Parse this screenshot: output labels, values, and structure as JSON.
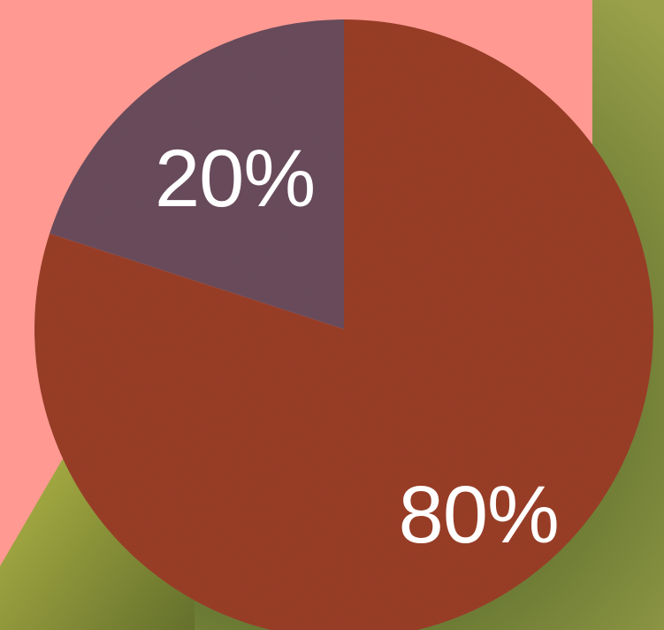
{
  "colors": {
    "slice_large": "#9a3e28",
    "slice_small": "#6a4c5c",
    "backdrop": "#ff9991",
    "foliage": "#6b7a34"
  },
  "chart_data": {
    "type": "pie",
    "categories": [
      "",
      ""
    ],
    "values": [
      80,
      20
    ],
    "labels": [
      "80%",
      "20%"
    ],
    "title": ""
  }
}
